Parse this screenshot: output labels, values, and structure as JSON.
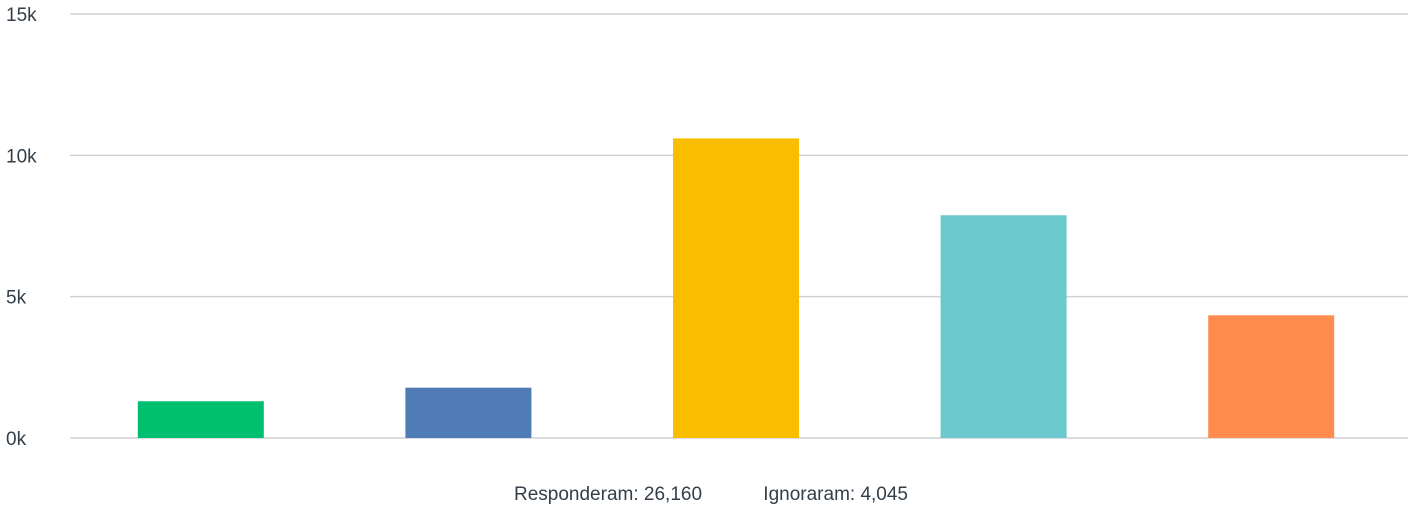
{
  "chart_data": {
    "type": "bar",
    "categories": [
      "",
      "",
      "",
      "",
      ""
    ],
    "values": [
      1300,
      1780,
      10600,
      7880,
      4340
    ],
    "colors": [
      "#00bf6f",
      "#507cb6",
      "#f9be00",
      "#6bc8cd",
      "#ff8b4f"
    ],
    "ylim": [
      0,
      15000
    ],
    "yticks": [
      {
        "value": 0,
        "label": "0k"
      },
      {
        "value": 5000,
        "label": "5k"
      },
      {
        "value": 10000,
        "label": "10k"
      },
      {
        "value": 15000,
        "label": "15k"
      }
    ],
    "grid": true,
    "title": "",
    "xlabel": "",
    "ylabel": ""
  },
  "footer": {
    "answered": "Responderam: 26,160",
    "skipped": "Ignoraram: 4,045"
  },
  "colors": {
    "grid": "#d0d2d3",
    "text": "#333e48"
  }
}
